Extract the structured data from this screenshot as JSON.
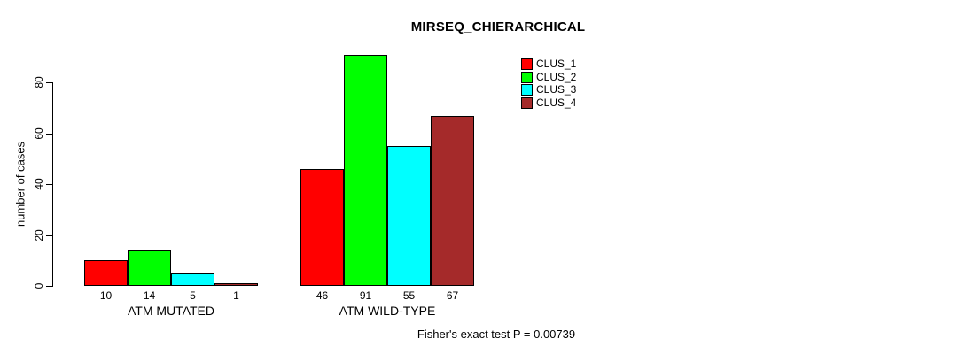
{
  "chart_data": {
    "type": "bar",
    "title": "MIRSEQ_CHIERARCHICAL",
    "ylabel": "number of cases",
    "xlabel": "",
    "ylim": [
      0,
      80
    ],
    "yticks": [
      0,
      20,
      40,
      60,
      80
    ],
    "categories": [
      "ATM MUTATED",
      "ATM WILD-TYPE"
    ],
    "series": [
      {
        "name": "CLUS_1",
        "color": "#FF0000",
        "values": [
          10,
          46
        ]
      },
      {
        "name": "CLUS_2",
        "color": "#00FF00",
        "values": [
          14,
          91
        ]
      },
      {
        "name": "CLUS_3",
        "color": "#00FFFF",
        "values": [
          5,
          55
        ]
      },
      {
        "name": "CLUS_4",
        "color": "#A52A2A",
        "values": [
          1,
          67
        ]
      }
    ],
    "bar_value_labels_shown": true,
    "legend_position": "top-right",
    "grid": false,
    "background_color": "#FFFFFF",
    "text_color": "#000000",
    "footnote": "Fisher's exact test P = 0.00739"
  }
}
